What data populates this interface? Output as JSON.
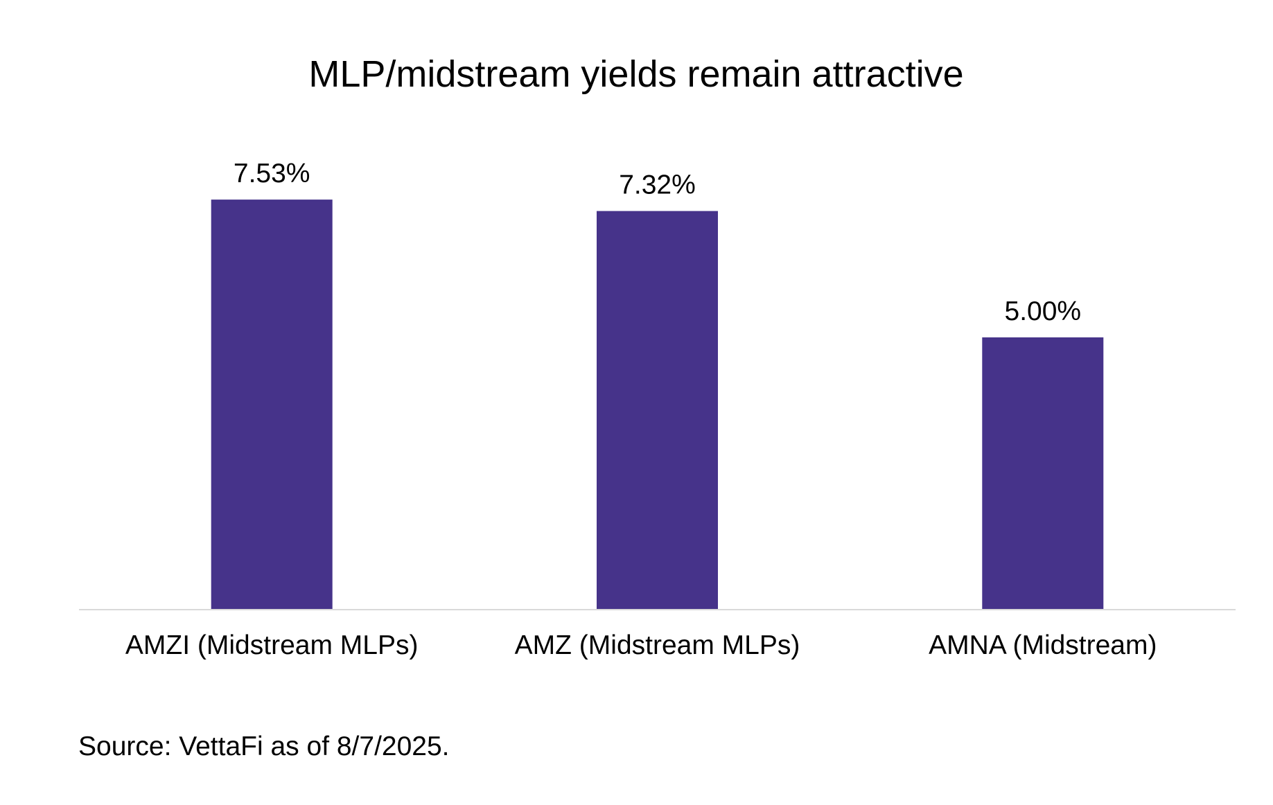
{
  "chart_data": {
    "type": "bar",
    "title": "MLP/midstream yields remain attractive",
    "xlabel": "",
    "ylabel": "",
    "categories": [
      "AMZI (Midstream MLPs)",
      "AMZ (Midstream MLPs)",
      "AMNA (Midstream)"
    ],
    "values": [
      7.53,
      7.32,
      5.0
    ],
    "data_labels": [
      "7.53%",
      "7.32%",
      "5.00%"
    ],
    "ylim": [
      0,
      8.5
    ],
    "grid": false,
    "legend": "none",
    "bar_color": "#46338a",
    "axis_color": "#d9d9d9",
    "source": "Source: VettaFi as of 8/7/2025."
  }
}
